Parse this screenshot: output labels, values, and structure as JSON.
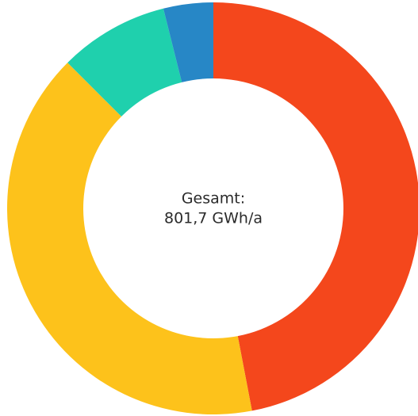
{
  "chart_data": {
    "type": "pie",
    "values": [
      47,
      40.5,
      8.6,
      3.9
    ],
    "colors": [
      "#f4471c",
      "#fdc21b",
      "#1fd0ad",
      "#2787c6"
    ],
    "center_text": [
      "Gesamt:",
      "801,7 GWh/a"
    ]
  }
}
